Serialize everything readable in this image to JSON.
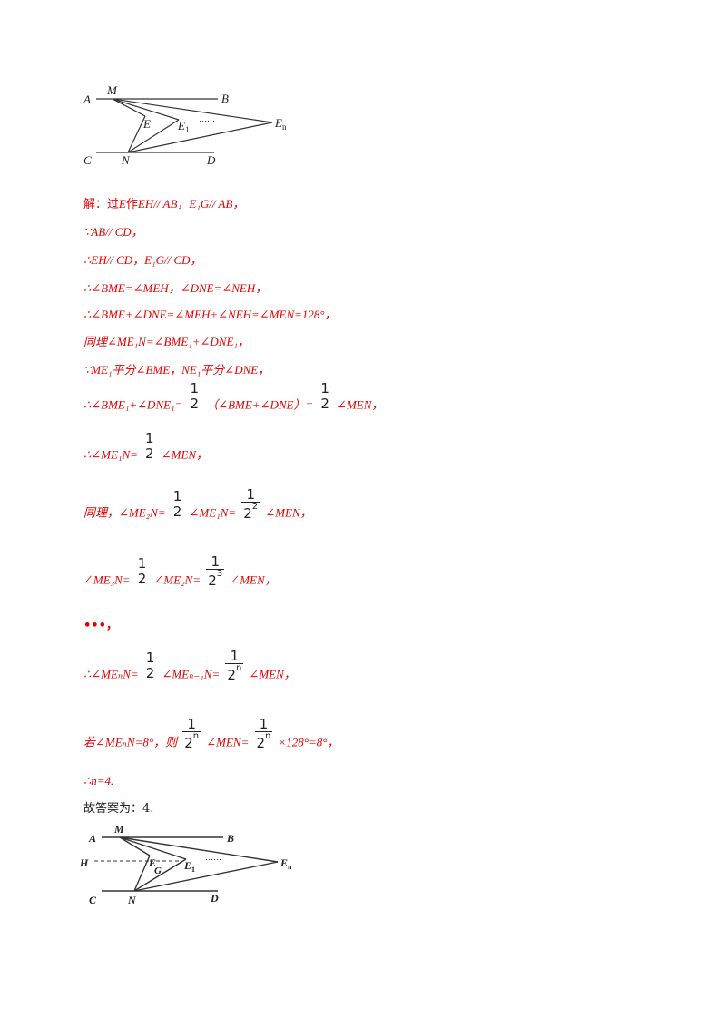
{
  "figure1": {
    "labels": {
      "A": "A",
      "M": "M",
      "B": "B",
      "E": "E",
      "E1": "E",
      "E1_sub": "1",
      "dots": "……",
      "En": "E",
      "En_sub": "n",
      "C": "C",
      "N": "N",
      "D": "D"
    }
  },
  "solution": {
    "l1_prefix": "解：过",
    "l1_E": "E",
    "l1_mid": "作",
    "l1_rest": "EH// AB，E₁G// AB，",
    "l2": "∵AB// CD，",
    "l3": "∴EH// CD，E₁G// CD，",
    "l4": "∴∠BME=∠MEH，∠DNE=∠NEH，",
    "l5": "∴∠BME+∠DNE=∠MEH+∠NEH=∠MEN=128°，",
    "l6": "同理∠ME₁N=∠BME₁+∠DNE₁，",
    "l7": "∵ME₁平分∠BME，NE₁平分∠DNE，",
    "l8_a": "∴∠BME₁+∠DNE₁=",
    "l8_b": "（∠BME+∠DNE）=",
    "l8_c": "∠MEN，",
    "l9_a": "∴∠ME₁N=",
    "l9_b": "∠MEN，",
    "l10_a": "同理，∠ME₂N=",
    "l10_b": "∠ME₁N=",
    "l10_c": "∠MEN，",
    "l11_a": "∠ME₃N=",
    "l11_b": "∠ME₂N=",
    "l11_c": "∠MEN，",
    "l12": "•••，",
    "l13_a": "∴∠MEₙN=",
    "l13_b": "∠MEₙ₋₁N=",
    "l13_c": "∠MEN，",
    "l14_a": "若∠MEₙN=8°，则",
    "l14_b": "∠MEN=",
    "l14_c": "×128°=8°，",
    "l15": "∴n=4.",
    "answer": "故答案为：4.",
    "frac_one": "1",
    "frac_two": "2",
    "exp2": "2",
    "exp3": "3",
    "expn": "n"
  },
  "figure2": {
    "labels": {
      "A": "A",
      "M": "M",
      "B": "B",
      "H": "H",
      "E": "E",
      "G": "G",
      "E1": "E",
      "E1_sub": "1",
      "dots": "……",
      "En": "E",
      "En_sub": "n",
      "C": "C",
      "N": "N",
      "D": "D"
    }
  },
  "colors": {
    "solution_text": "#e60000",
    "figure": "#222222"
  }
}
